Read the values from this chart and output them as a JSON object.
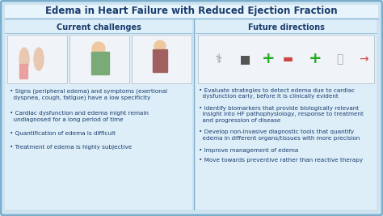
{
  "title": "Edema in Heart Failure with Reduced Ejection Fraction",
  "title_fontsize": 8.5,
  "title_color": "#1a3d6e",
  "bg_color": "#cde3f0",
  "outer_bg": "#b8d4e8",
  "panel_bg": "#ddeef8",
  "header_bar_bg": "#e8f4fc",
  "title_bar_bg": "#e8f4fc",
  "border_color": "#7aaccc",
  "left_header": "Current challenges",
  "right_header": "Future directions",
  "header_color": "#1a3d6e",
  "header_fontsize": 7.0,
  "bullet_fontsize": 5.2,
  "bullet_color": "#1a3d6e",
  "img_box_bg": "#f0f4f8",
  "left_bullets": [
    "Signs (peripheral edema) and symptoms (exertional\n  dyspnea, cough, fatigue) have a low specificity",
    "Cardiac dysfunction and edema might remain\n  undiagnosed for a long period of time",
    "Quantification of edema is difficult",
    "Treatment of edema is highly subjective"
  ],
  "right_bullets": [
    "Evaluate strategies to detect edema due to cardiac\n  dysfunction early, before it is clinically evident",
    "Identify biomarkers that provide biologically relevant\n  insight into HF pathophysiology, response to treatment\n  and progression of disease",
    "Develop non-invasive diagnostic tools that quantify\n  edema in different organs/tissues with more precision",
    "Improve management of edema",
    "Move towards preventive rather than reactive therapy"
  ]
}
